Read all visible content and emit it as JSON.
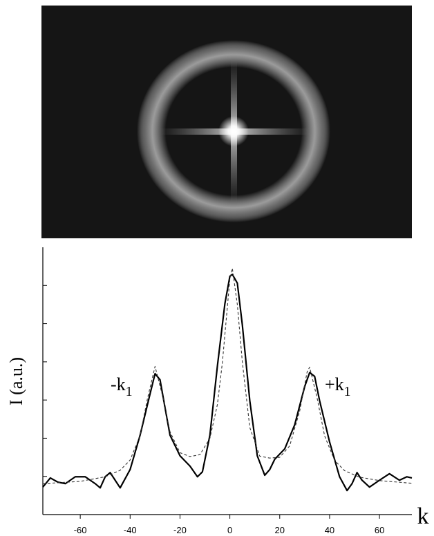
{
  "chart_data": {
    "type": "line",
    "x_label": "k",
    "y_label": "I (a.u.)",
    "annotations": [
      {
        "text": "-k",
        "sub": "1"
      },
      {
        "text": "+k",
        "sub": "1"
      }
    ],
    "xlim": [
      -75,
      73
    ],
    "ylim": [
      0,
      7
    ],
    "xticks": [
      -60,
      -40,
      -20,
      0,
      20,
      40,
      60
    ],
    "yticks": [
      1,
      2,
      3,
      4,
      5,
      6
    ],
    "series": [
      {
        "color": "#000000",
        "style": "solid",
        "x": [
          -75,
          -72,
          -69,
          -66,
          -62,
          -58,
          -54,
          -52,
          -50,
          -48,
          -46,
          -44,
          -40,
          -36,
          -32,
          -30,
          -28,
          -26,
          -24,
          -20,
          -16,
          -13,
          -11,
          -8,
          -5,
          -2,
          0,
          1,
          3,
          5,
          8,
          11,
          14,
          16,
          18,
          22,
          26,
          30,
          32,
          34,
          36,
          40,
          44,
          47,
          49,
          51,
          53,
          56,
          60,
          64,
          68,
          71,
          73
        ],
        "values": [
          0.72,
          0.96,
          0.85,
          0.81,
          0.99,
          0.99,
          0.81,
          0.7,
          0.99,
          1.1,
          0.9,
          0.7,
          1.18,
          2.08,
          3.16,
          3.69,
          3.53,
          2.8,
          2.08,
          1.54,
          1.27,
          0.99,
          1.12,
          2.08,
          3.89,
          5.52,
          6.24,
          6.29,
          6.06,
          4.97,
          2.98,
          1.54,
          1.03,
          1.18,
          1.45,
          1.72,
          2.35,
          3.35,
          3.72,
          3.62,
          2.98,
          1.9,
          0.99,
          0.63,
          0.81,
          1.1,
          0.9,
          0.72,
          0.9,
          1.07,
          0.9,
          0.99,
          0.96
        ]
      },
      {
        "color": "#333333",
        "style": "dashed",
        "x": [
          -75,
          -60,
          -50,
          -44,
          -40,
          -36,
          -33,
          -30,
          -27,
          -24,
          -20,
          -16,
          -12,
          -8,
          -5,
          -3,
          0,
          1,
          3,
          5,
          8,
          12,
          16,
          20,
          24,
          28,
          31,
          32,
          35,
          38,
          42,
          46,
          52,
          60,
          73
        ],
        "values": [
          0.81,
          0.87,
          0.99,
          1.16,
          1.43,
          2.07,
          3.05,
          3.88,
          3.11,
          2.17,
          1.62,
          1.52,
          1.57,
          2.0,
          2.88,
          3.98,
          6.17,
          6.45,
          5.5,
          4.0,
          2.28,
          1.53,
          1.48,
          1.5,
          1.8,
          2.71,
          3.74,
          3.86,
          3.05,
          2.06,
          1.42,
          1.15,
          0.98,
          0.89,
          0.82
        ]
      }
    ]
  }
}
